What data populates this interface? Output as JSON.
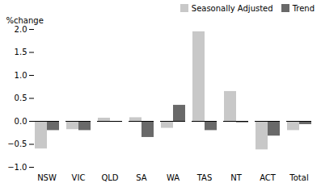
{
  "chart_data": {
    "type": "bar",
    "categories": [
      "NSW",
      "VIC",
      "QLD",
      "SA",
      "WA",
      "TAS",
      "NT",
      "ACT",
      "Total"
    ],
    "series": [
      {
        "name": "Seasonally Adjusted",
        "color": "#c8c8c8",
        "values": [
          -0.6,
          -0.18,
          0.07,
          0.08,
          -0.15,
          1.95,
          0.65,
          -0.62,
          -0.2
        ]
      },
      {
        "name": "Trend",
        "color": "#696969",
        "values": [
          -0.2,
          -0.2,
          -0.02,
          -0.35,
          0.35,
          -0.2,
          -0.03,
          -0.32,
          -0.07
        ]
      }
    ],
    "ylabel": "%change",
    "ylim": [
      -1.0,
      2.0
    ],
    "yticks": [
      {
        "value": -1.0,
        "label": "−1.0"
      },
      {
        "value": -0.5,
        "label": "−0.5"
      },
      {
        "value": 0.0,
        "label": "0.0"
      },
      {
        "value": 0.5,
        "label": "0.5"
      },
      {
        "value": 1.0,
        "label": "1.0"
      },
      {
        "value": 1.5,
        "label": "1.5"
      },
      {
        "value": 2.0,
        "label": "2.0"
      }
    ],
    "legend": "upper right",
    "grid": false
  }
}
